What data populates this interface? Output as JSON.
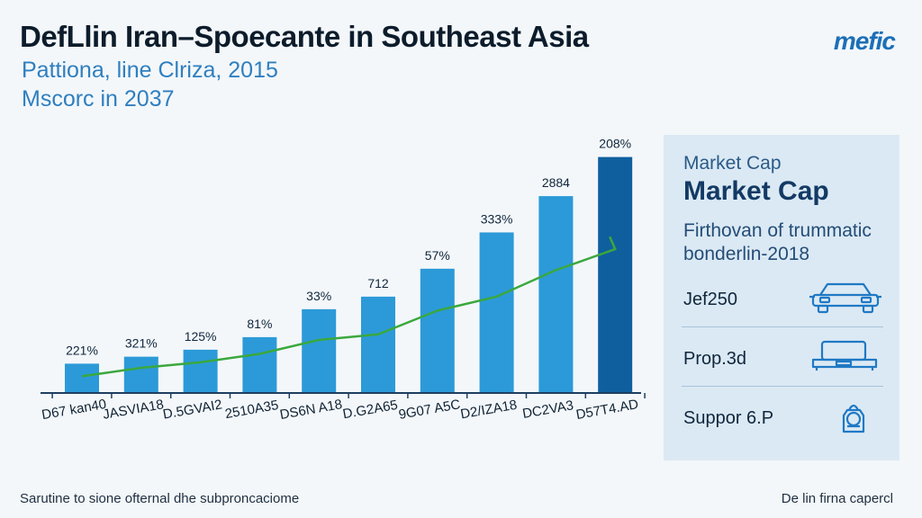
{
  "header": {
    "title": "DefLlin Iran–Spoecante in Southeast Asia",
    "subtitle_line1": "Pattiona, line Clriza, 2015",
    "subtitle_line2": "Mscorc in 2037",
    "logo": "mefic"
  },
  "chart_data": {
    "type": "bar",
    "title": "DefLlin Iran–Spoecante in Southeast Asia",
    "categories": [
      "D67 kan40",
      "JASVIA18",
      "D.5GVAI2",
      "2510A35",
      "DS6N A18",
      "D.G2A65",
      "9G07 A5C",
      "D2/IZA18",
      "DC2VA3",
      "D57T4.AD"
    ],
    "values": [
      21,
      26,
      31,
      40,
      60,
      69,
      89,
      115,
      141,
      169
    ],
    "data_labels": [
      "221%",
      "321%",
      "125%",
      "81%",
      "33%",
      "712",
      "57%",
      "333%",
      "2884",
      "208%"
    ],
    "trend_line": [
      12,
      18,
      22,
      28,
      38,
      42,
      59,
      69,
      88,
      103
    ],
    "ylim": [
      0,
      190
    ],
    "xlabel": "",
    "ylabel": "",
    "grid": false,
    "colors": {
      "bar": "#2c9ad8",
      "bar_highlight": "#0f5f9e",
      "line": "#3aa83d",
      "axis": "#1e3f61"
    }
  },
  "panel": {
    "top_label": "Market Cap",
    "heading": "Market Cap",
    "description": "Firthovan of trummatic bonderlin-2018",
    "rows": [
      {
        "label": "Jef250",
        "icon": "car-icon"
      },
      {
        "label": "Prop.3d",
        "icon": "tray-icon"
      },
      {
        "label": "Suppor 6.P",
        "icon": "bag-icon"
      }
    ],
    "icon_color": "#1f79c4"
  },
  "footer": {
    "left": "Sarutine to sione ofternal dhe subproncaciome",
    "right": "De lin firna capercl"
  }
}
